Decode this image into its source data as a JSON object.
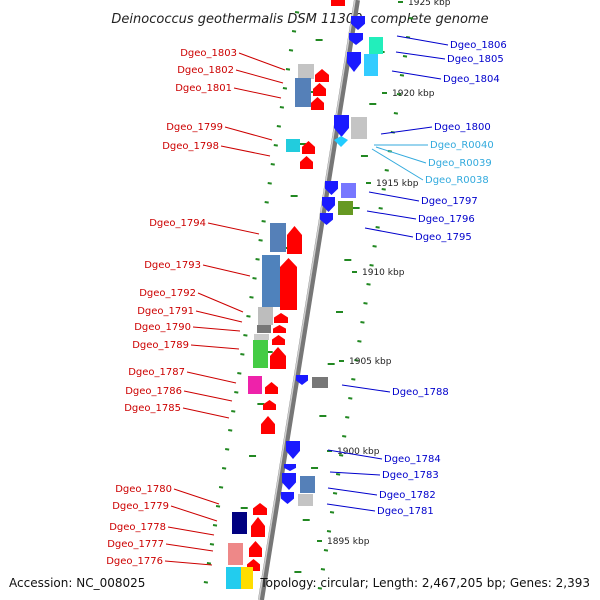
{
  "title": "Deinococcus geothermalis DSM 11300, complete genome",
  "footer": {
    "accession": "Accession: NC_008025",
    "summary": "Topology: circular; Length: 2,467,205 bp; Genes: 2,393"
  },
  "colors": {
    "left_label": "#cc0000",
    "right_label": "#0000cc",
    "rna_label": "#33aadd",
    "backbone": "#888888",
    "tick": "#228822"
  },
  "kbp_marks": [
    {
      "label": "1925 kbp"
    },
    {
      "label": "1920 kbp"
    },
    {
      "label": "1915 kbp"
    },
    {
      "label": "1910 kbp"
    },
    {
      "label": "1905 kbp"
    },
    {
      "label": "1900 kbp"
    },
    {
      "label": "1895 kbp"
    }
  ],
  "left_genes": [
    "Dgeo_1803",
    "Dgeo_1802",
    "Dgeo_1801",
    "Dgeo_1799",
    "Dgeo_1798",
    "Dgeo_1794",
    "Dgeo_1793",
    "Dgeo_1792",
    "Dgeo_1791",
    "Dgeo_1790",
    "Dgeo_1789",
    "Dgeo_1787",
    "Dgeo_1786",
    "Dgeo_1785",
    "Dgeo_1780",
    "Dgeo_1779",
    "Dgeo_1778",
    "Dgeo_1777",
    "Dgeo_1776"
  ],
  "right_genes": [
    "Dgeo_1806",
    "Dgeo_1805",
    "Dgeo_1804",
    "Dgeo_1800",
    "Dgeo_R0040",
    "Dgeo_R0039",
    "Dgeo_R0038",
    "Dgeo_1797",
    "Dgeo_1796",
    "Dgeo_1795",
    "Dgeo_1788",
    "Dgeo_1784",
    "Dgeo_1783",
    "Dgeo_1782",
    "Dgeo_1781"
  ]
}
